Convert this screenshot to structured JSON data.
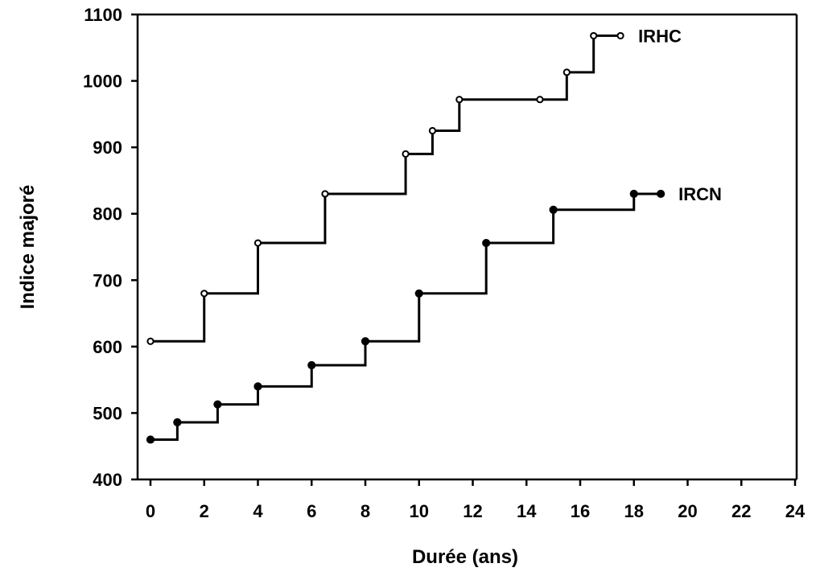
{
  "chart_data": {
    "type": "line",
    "step": "post",
    "title": "",
    "xlabel": "Durée (ans)",
    "ylabel": "Indice majoré",
    "xlim": [
      0,
      24
    ],
    "ylim": [
      400,
      1100
    ],
    "xticks": [
      "0",
      "2",
      "4",
      "6",
      "8",
      "10",
      "12",
      "14",
      "16",
      "18",
      "20",
      "22",
      "24"
    ],
    "yticks": [
      "400",
      "500",
      "600",
      "700",
      "800",
      "900",
      "1000",
      "1100"
    ],
    "grid": false,
    "legend": "none",
    "series": [
      {
        "name": "IRHC",
        "marker": "open-circle",
        "x": [
          0,
          2,
          4,
          6.5,
          9.5,
          10.5,
          11.5,
          14.5,
          15.5,
          16.5,
          17.5
        ],
        "y": [
          608,
          680,
          756,
          830,
          890,
          925,
          972,
          972,
          1013,
          1068,
          1068
        ]
      },
      {
        "name": "IRCN",
        "marker": "filled-circle",
        "x": [
          0,
          1,
          2.5,
          4,
          6,
          8,
          10,
          12.5,
          15,
          18,
          19
        ],
        "y": [
          460,
          486,
          513,
          540,
          572,
          608,
          680,
          756,
          806,
          830,
          830
        ]
      }
    ]
  }
}
